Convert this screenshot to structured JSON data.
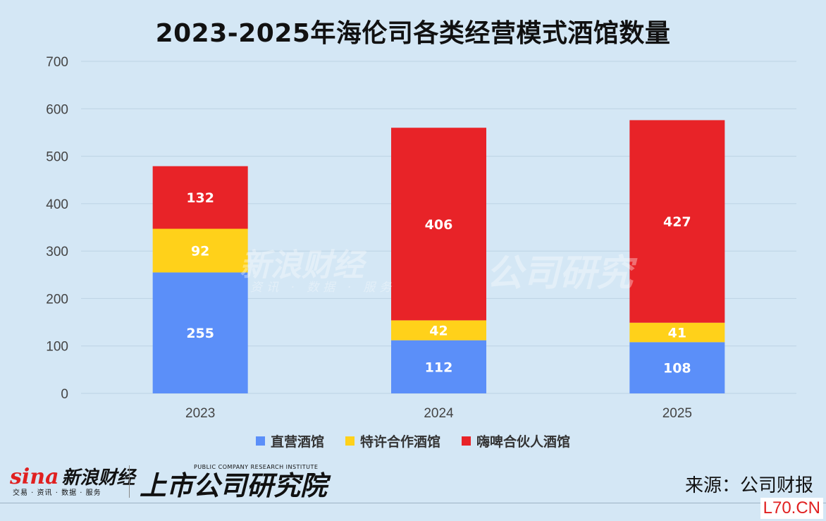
{
  "chart_data": {
    "type": "bar",
    "stacked": true,
    "title": "2023-2025年海伦司各类经营模式酒馆数量",
    "categories": [
      "2023",
      "2024",
      "2025"
    ],
    "series": [
      {
        "name": "直营酒馆",
        "values": [
          255,
          112,
          108
        ],
        "color": "#5b8ff9"
      },
      {
        "name": "特许合作酒馆",
        "values": [
          92,
          42,
          41
        ],
        "color": "#ffd11a"
      },
      {
        "name": "嗨啤合伙人酒馆",
        "values": [
          132,
          406,
          427
        ],
        "color": "#e82328"
      }
    ],
    "ylim": [
      0,
      700
    ],
    "yticks": [
      0,
      100,
      200,
      300,
      400,
      500,
      600,
      700
    ],
    "grid": true,
    "legend_position": "bottom"
  },
  "watermark": {
    "sina_cn": "新浪财经",
    "sina_sub": "资讯 · 数据 · 服务",
    "pcri_cn": "公司研究"
  },
  "footer": {
    "sina_word": "sina",
    "sina_cn": "新浪财经",
    "sina_sub": "交易 · 资讯 · 数据 · 服务",
    "pcri_cn": "上市公司研究院",
    "pcri_en": "PUBLIC COMPANY RESEARCH INSTITUTE",
    "source": "来源：公司财报",
    "corner_mark": "L70.CN"
  }
}
